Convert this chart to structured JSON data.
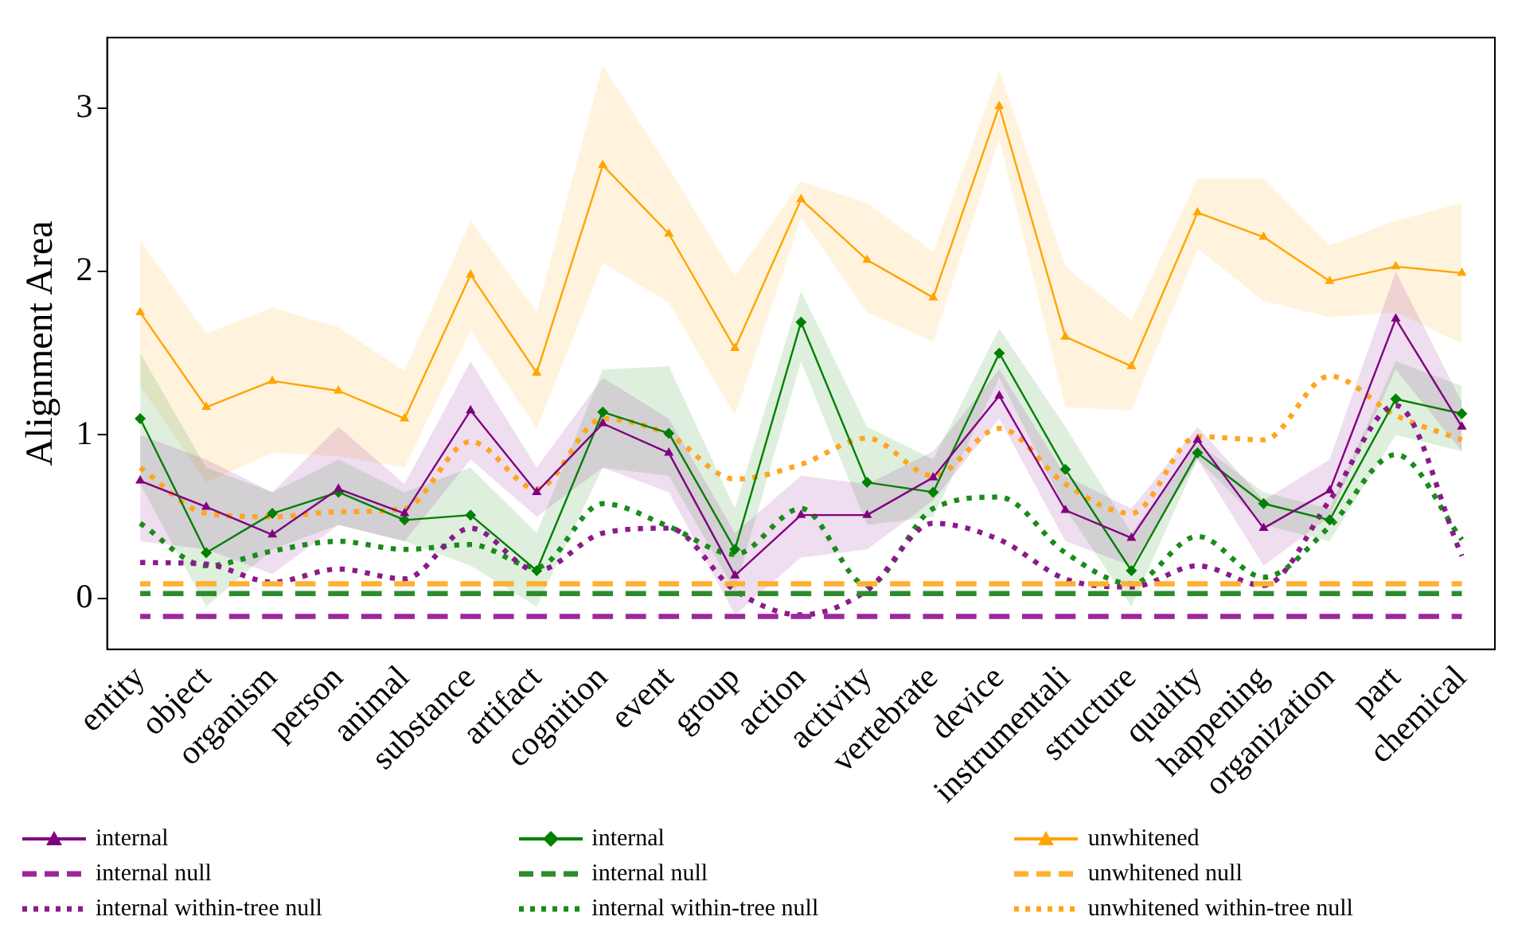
{
  "chart_data": {
    "type": "line",
    "ylabel": "Alignment Area",
    "legend": "bottom",
    "grid": false,
    "categories": [
      "entity",
      "object",
      "organism",
      "person",
      "animal",
      "substance",
      "artifact",
      "cognition",
      "event",
      "group",
      "action",
      "activity",
      "vertebrate",
      "device",
      "instrumentali",
      "structure",
      "quality",
      "happening",
      "organization",
      "part",
      "chemical"
    ],
    "ylim": [
      -0.31,
      3.43
    ],
    "yticks": [
      0,
      1,
      2,
      3
    ],
    "series": [
      {
        "name": "internal",
        "color": "#800080",
        "marker": "triangle",
        "line_style": "solid",
        "values": [
          0.72,
          0.56,
          0.39,
          0.67,
          0.52,
          1.15,
          0.65,
          1.07,
          0.89,
          0.14,
          0.51,
          0.51,
          0.74,
          1.24,
          0.54,
          0.37,
          0.97,
          0.43,
          0.66,
          1.71,
          1.05
        ],
        "lower": [
          0.35,
          0.3,
          0.15,
          0.45,
          0.35,
          0.85,
          0.5,
          0.8,
          0.65,
          -0.1,
          0.25,
          0.3,
          0.6,
          1.1,
          0.35,
          0.2,
          0.85,
          0.2,
          0.5,
          1.4,
          0.9
        ],
        "upper": [
          1.0,
          0.85,
          0.65,
          1.05,
          0.7,
          1.45,
          0.8,
          1.35,
          1.1,
          0.4,
          0.75,
          0.7,
          0.9,
          1.4,
          0.75,
          0.55,
          1.05,
          0.6,
          0.85,
          2.0,
          1.2
        ]
      },
      {
        "name": "internal",
        "color": "#008000",
        "marker": "diamond",
        "line_style": "solid",
        "values": [
          1.1,
          0.28,
          0.52,
          0.65,
          0.48,
          0.51,
          0.17,
          1.14,
          1.01,
          0.3,
          1.69,
          0.71,
          0.65,
          1.5,
          0.79,
          0.17,
          0.89,
          0.58,
          0.48,
          1.22,
          1.13
        ],
        "lower": [
          0.7,
          -0.05,
          0.3,
          0.45,
          0.35,
          0.2,
          -0.05,
          0.8,
          0.75,
          0.05,
          1.45,
          0.45,
          0.5,
          1.35,
          0.55,
          -0.05,
          0.85,
          0.45,
          0.35,
          1.0,
          0.9
        ],
        "upper": [
          1.5,
          0.8,
          0.65,
          0.85,
          0.65,
          0.8,
          0.4,
          1.4,
          1.42,
          0.55,
          1.88,
          1.05,
          0.85,
          1.65,
          1.05,
          0.4,
          0.95,
          0.65,
          0.55,
          1.45,
          1.3
        ]
      },
      {
        "name": "unwhitened",
        "color": "#ffa500",
        "marker": "triangle",
        "line_style": "solid",
        "values": [
          1.75,
          1.17,
          1.33,
          1.27,
          1.1,
          1.98,
          1.38,
          2.65,
          2.23,
          1.53,
          2.44,
          2.07,
          1.84,
          3.01,
          1.6,
          1.42,
          2.36,
          2.21,
          1.94,
          2.03,
          1.99
        ],
        "lower": [
          1.3,
          0.71,
          0.89,
          0.87,
          0.8,
          1.64,
          1.04,
          2.05,
          1.81,
          1.12,
          2.33,
          1.75,
          1.57,
          2.81,
          1.17,
          1.15,
          2.14,
          1.82,
          1.72,
          1.75,
          1.56
        ],
        "upper": [
          2.19,
          1.62,
          1.78,
          1.66,
          1.39,
          2.31,
          1.75,
          3.26,
          2.63,
          1.97,
          2.55,
          2.42,
          2.12,
          3.23,
          2.03,
          1.7,
          2.57,
          2.57,
          2.16,
          2.31,
          2.42
        ]
      },
      {
        "name": "internal null",
        "color": "#9b279b",
        "marker": "none",
        "line_style": "dashed",
        "values": [
          -0.11,
          -0.11,
          -0.11,
          -0.11,
          -0.11,
          -0.11,
          -0.11,
          -0.11,
          -0.11,
          -0.11,
          -0.11,
          -0.11,
          -0.11,
          -0.11,
          -0.11,
          -0.11,
          -0.11,
          -0.11,
          -0.11,
          -0.11,
          -0.11
        ]
      },
      {
        "name": "internal null",
        "color": "#2e8b2e",
        "marker": "none",
        "line_style": "dashed",
        "values": [
          0.03,
          0.03,
          0.03,
          0.03,
          0.03,
          0.03,
          0.03,
          0.03,
          0.03,
          0.03,
          0.03,
          0.03,
          0.03,
          0.03,
          0.03,
          0.03,
          0.03,
          0.03,
          0.03,
          0.03,
          0.03
        ]
      },
      {
        "name": "unwhitened null",
        "color": "#ffb030",
        "marker": "none",
        "line_style": "dashed",
        "values": [
          0.09,
          0.09,
          0.09,
          0.09,
          0.09,
          0.09,
          0.09,
          0.09,
          0.09,
          0.09,
          0.09,
          0.09,
          0.09,
          0.09,
          0.09,
          0.09,
          0.09,
          0.09,
          0.09,
          0.09,
          0.09
        ]
      },
      {
        "name": "internal within-tree null",
        "color": "#8b1a8b",
        "marker": "none",
        "line_style": "dotted",
        "values": [
          0.22,
          0.21,
          0.1,
          0.18,
          0.12,
          0.43,
          0.17,
          0.4,
          0.43,
          0.05,
          -0.1,
          0.05,
          0.46,
          0.36,
          0.12,
          0.07,
          0.2,
          0.08,
          0.6,
          1.18,
          0.26
        ]
      },
      {
        "name": "internal within-tree null",
        "color": "#1a8b1a",
        "marker": "none",
        "line_style": "dotted",
        "values": [
          0.46,
          0.2,
          0.29,
          0.35,
          0.3,
          0.33,
          0.19,
          0.58,
          0.44,
          0.27,
          0.55,
          0.08,
          0.55,
          0.62,
          0.28,
          0.09,
          0.38,
          0.13,
          0.44,
          0.88,
          0.36
        ]
      },
      {
        "name": "unwhitened within-tree null",
        "color": "#ffa520",
        "marker": "none",
        "line_style": "dotted",
        "values": [
          0.8,
          0.52,
          0.5,
          0.53,
          0.55,
          0.96,
          0.67,
          1.1,
          1.0,
          0.73,
          0.82,
          0.98,
          0.75,
          1.04,
          0.7,
          0.52,
          0.99,
          0.97,
          1.36,
          1.12,
          0.97
        ]
      }
    ]
  }
}
